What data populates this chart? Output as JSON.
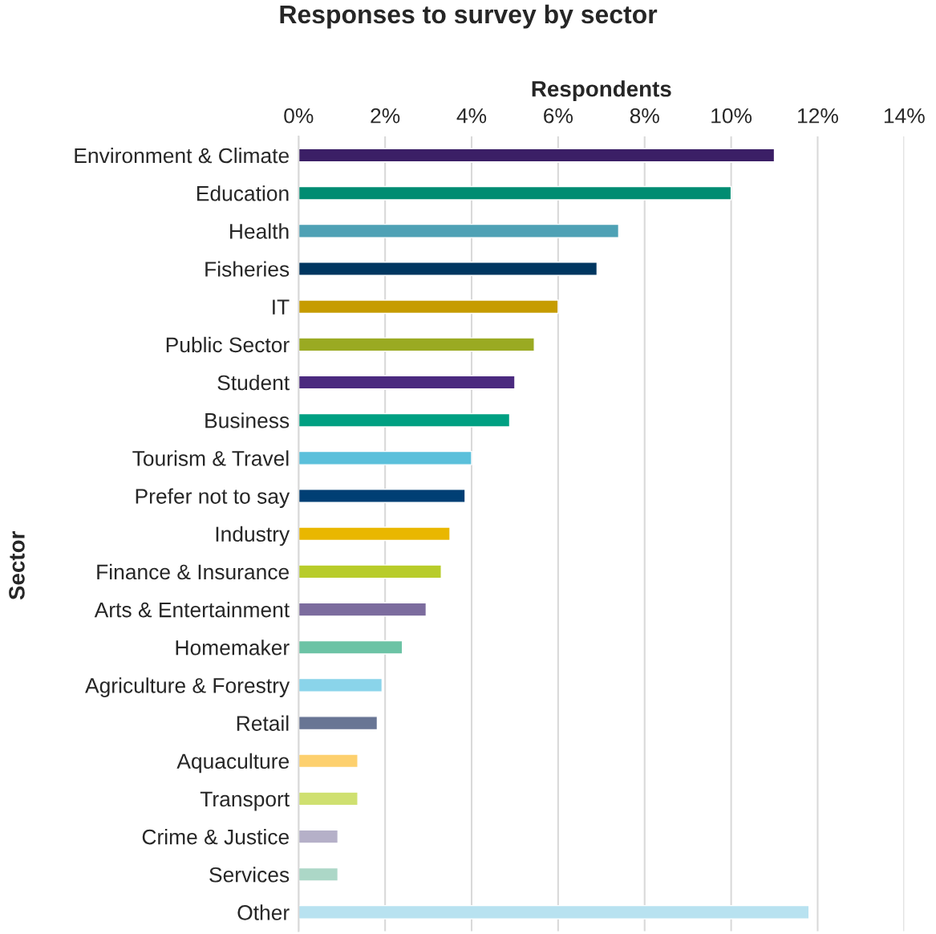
{
  "chart_data": {
    "type": "bar",
    "orientation": "horizontal",
    "title": "Responses to survey by sector",
    "xlabel": "Respondents",
    "ylabel": "Sector",
    "categories": [
      "Environment & Climate",
      "Education",
      "Health",
      "Fisheries",
      "IT",
      "Public Sector",
      "Student",
      "Business",
      "Tourism & Travel",
      "Prefer not to say",
      "Industry",
      "Finance & Insurance",
      "Arts & Entertainment",
      "Homemaker",
      "Agriculture & Forestry",
      "Retail",
      "Aquaculture",
      "Transport",
      "Crime & Justice",
      "Services",
      "Other"
    ],
    "values": [
      11.0,
      10.0,
      7.4,
      6.9,
      6.0,
      5.45,
      5.0,
      4.88,
      4.0,
      3.85,
      3.5,
      3.3,
      2.95,
      2.4,
      1.93,
      1.82,
      1.37,
      1.37,
      0.91,
      0.91,
      11.8
    ],
    "colors": [
      "#3b1f66",
      "#008c72",
      "#4ea1b5",
      "#003660",
      "#c69c00",
      "#9aaa22",
      "#4b2a7f",
      "#00a082",
      "#5bc0db",
      "#003f74",
      "#e9b700",
      "#b8cc2a",
      "#7c6c9e",
      "#6cc3a5",
      "#8ad4ea",
      "#687594",
      "#fdd06e",
      "#cfe070",
      "#b5b0c8",
      "#acd7c7",
      "#b8e2f0"
    ],
    "xlim": [
      0,
      14
    ],
    "xticks": [
      {
        "value": 0,
        "label": "0%"
      },
      {
        "value": 2,
        "label": "2%"
      },
      {
        "value": 4,
        "label": "4%"
      },
      {
        "value": 6,
        "label": "6%"
      },
      {
        "value": 8,
        "label": "8%"
      },
      {
        "value": 10,
        "label": "10%"
      },
      {
        "value": 12,
        "label": "12%"
      },
      {
        "value": 14,
        "label": "14%"
      }
    ],
    "grid": "x",
    "legend": false
  }
}
